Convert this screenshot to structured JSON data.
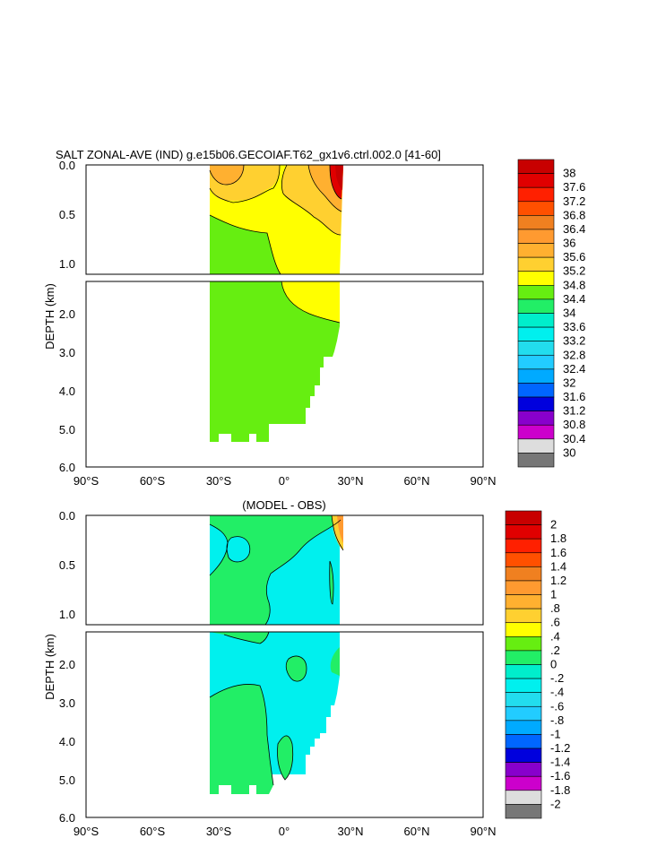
{
  "chart_data": [
    {
      "type": "contour",
      "title": "SALT ZONAL-AVE (IND) g.e15b06.GECOIAF.T62_gx1v6.ctrl.002.0 [41-60]",
      "ylabel": "DEPTH (km)",
      "x_tick_labels": [
        "90°S",
        "60°S",
        "30°S",
        "0°",
        "30°N",
        "60°N",
        "90°N"
      ],
      "x_range": [
        -90,
        90
      ],
      "y_range_top_panel": [
        0.0,
        1.1
      ],
      "y_range_bottom_panel": [
        1.1,
        6.0
      ],
      "y_tick_labels_top": [
        "0.0",
        "0.5",
        "1.0"
      ],
      "y_tick_labels_bottom": [
        "2.0",
        "3.0",
        "4.0",
        "5.0",
        "6.0"
      ],
      "colorbar_labels": [
        "38",
        "37.6",
        "37.2",
        "36.8",
        "36.4",
        "36",
        "35.6",
        "35.2",
        "34.8",
        "34.4",
        "34",
        "33.6",
        "33.2",
        "32.8",
        "32.4",
        "32",
        "31.6",
        "31.2",
        "30.8",
        "30.4",
        "30"
      ],
      "colorbar_colors": [
        "#c80000",
        "#e00000",
        "#ff2000",
        "#ff5000",
        "#f08020",
        "#ff9a30",
        "#ffb030",
        "#ffd030",
        "#ffff00",
        "#66ee11",
        "#22ee66",
        "#00eecc",
        "#00f0ee",
        "#22ddee",
        "#22ccff",
        "#00aaff",
        "#0066ff",
        "#0000dd",
        "#8800cc",
        "#cc00cc",
        "#dddddd",
        "#777777"
      ],
      "regions": [
        {
          "name": "south-deep",
          "value": 34.6,
          "color": "#66ee11"
        },
        {
          "name": "north-upper",
          "value": 35.0,
          "color": "#ffff00"
        },
        {
          "name": "south-surface",
          "value": 35.4,
          "color": "#ffd030"
        },
        {
          "name": "north-surface-salty",
          "value": 36.8,
          "color": "#e00000"
        }
      ]
    },
    {
      "type": "contour",
      "title": "(MODEL - OBS)",
      "ylabel": "DEPTH (km)",
      "x_tick_labels": [
        "90°S",
        "60°S",
        "30°S",
        "0°",
        "30°N",
        "60°N",
        "90°N"
      ],
      "x_range": [
        -90,
        90
      ],
      "y_range_top_panel": [
        0.0,
        1.1
      ],
      "y_range_bottom_panel": [
        1.1,
        6.0
      ],
      "y_tick_labels_top": [
        "0.0",
        "0.5",
        "1.0"
      ],
      "y_tick_labels_bottom": [
        "2.0",
        "3.0",
        "4.0",
        "5.0",
        "6.0"
      ],
      "colorbar_labels": [
        "2",
        "1.8",
        "1.6",
        "1.4",
        "1.2",
        "1",
        ".8",
        ".6",
        ".4",
        ".2",
        "0",
        "-.2",
        "-.4",
        "-.6",
        "-.8",
        "-1",
        "-1.2",
        "-1.4",
        "-1.6",
        "-1.8",
        "-2"
      ],
      "colorbar_colors": [
        "#c80000",
        "#e00000",
        "#ff2000",
        "#ff5000",
        "#f08020",
        "#ff9a30",
        "#ffb030",
        "#ffd030",
        "#ffff00",
        "#66ee11",
        "#22ee66",
        "#00eecc",
        "#00f0ee",
        "#22ddee",
        "#22ccff",
        "#00aaff",
        "#0066ff",
        "#0000dd",
        "#8800cc",
        "#cc00cc",
        "#dddddd",
        "#777777"
      ],
      "regions": [
        {
          "name": "background",
          "value": -0.1,
          "color": "#00f0ee"
        },
        {
          "name": "positive-patches",
          "value": 0.1,
          "color": "#22ee66"
        },
        {
          "name": "northern-surface",
          "value": 1.0,
          "color": "#ff9a30"
        }
      ]
    }
  ]
}
